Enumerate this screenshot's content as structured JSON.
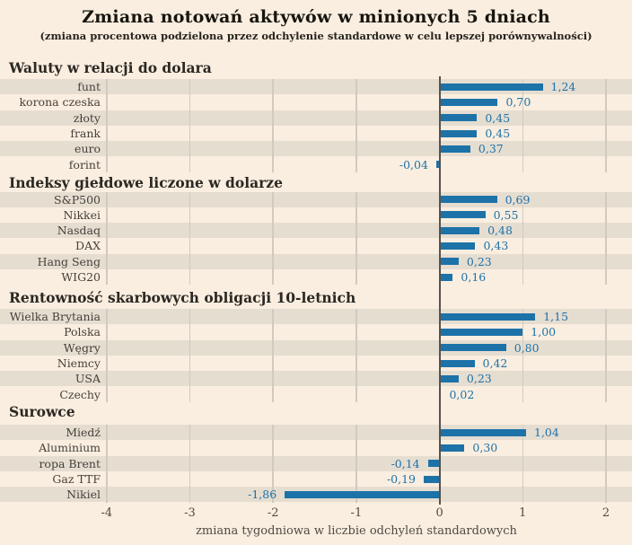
{
  "header": {
    "title": "Zmiana notowań aktywów w minionych 5 dniach",
    "subtitle": "(zmiana procentowa podzielona przez odchylenie standardowe w celu lepszej porównywalności)"
  },
  "colors": {
    "background": "#faeee0",
    "row_stripe": "#e6ddd1",
    "bar": "#1d72a8",
    "value_label": "#1d72a8",
    "grid_line": "#d0cac0",
    "zero_line": "#56534d",
    "section_title": "#2b2823",
    "row_label": "#45413a",
    "axis_text": "#4e4a44"
  },
  "chart_data": {
    "type": "bar",
    "orientation": "horizontal",
    "title": "Zmiana notowań aktywów w minionych 5 dniach",
    "subtitle": "(zmiana procentowa podzielona przez odchylenie standardowe w celu lepszej porównywalności)",
    "xlabel": "zmiana tygodniowa w liczbie odchyleń standardowych",
    "xlim": [
      -4,
      2
    ],
    "xticks": [
      "-4",
      "-3",
      "-2",
      "-1",
      "0",
      "1",
      "2"
    ],
    "grid": true,
    "decimal_separator": ",",
    "sections": [
      {
        "title": "Waluty w relacji do dolara",
        "items": [
          {
            "label": "funt",
            "value": 1.24,
            "display": "1,24"
          },
          {
            "label": "korona czeska",
            "value": 0.7,
            "display": "0,70"
          },
          {
            "label": "złoty",
            "value": 0.45,
            "display": "0,45"
          },
          {
            "label": "frank",
            "value": 0.45,
            "display": "0,45"
          },
          {
            "label": "euro",
            "value": 0.37,
            "display": "0,37"
          },
          {
            "label": "forint",
            "value": -0.04,
            "display": "-0,04"
          }
        ]
      },
      {
        "title": "Indeksy giełdowe liczone w dolarze",
        "items": [
          {
            "label": "S&P500",
            "value": 0.69,
            "display": "0,69"
          },
          {
            "label": "Nikkei",
            "value": 0.55,
            "display": "0,55"
          },
          {
            "label": "Nasdaq",
            "value": 0.48,
            "display": "0,48"
          },
          {
            "label": "DAX",
            "value": 0.43,
            "display": "0,43"
          },
          {
            "label": "Hang Seng",
            "value": 0.23,
            "display": "0,23"
          },
          {
            "label": "WIG20",
            "value": 0.16,
            "display": "0,16"
          }
        ]
      },
      {
        "title": "Rentowność skarbowych obligacji 10-letnich",
        "items": [
          {
            "label": "Wielka Brytania",
            "value": 1.15,
            "display": "1,15"
          },
          {
            "label": "Polska",
            "value": 1.0,
            "display": "1,00"
          },
          {
            "label": "Węgry",
            "value": 0.8,
            "display": "0,80"
          },
          {
            "label": "Niemcy",
            "value": 0.42,
            "display": "0,42"
          },
          {
            "label": "USA",
            "value": 0.23,
            "display": "0,23"
          },
          {
            "label": "Czechy",
            "value": 0.02,
            "display": "0,02"
          }
        ]
      },
      {
        "title": "Surowce",
        "items": [
          {
            "label": "Miedź",
            "value": 1.04,
            "display": "1,04"
          },
          {
            "label": "Aluminium",
            "value": 0.3,
            "display": "0,30"
          },
          {
            "label": "ropa Brent",
            "value": -0.14,
            "display": "-0,14"
          },
          {
            "label": "Gaz TTF",
            "value": -0.19,
            "display": "-0,19"
          },
          {
            "label": "Nikiel",
            "value": -1.86,
            "display": "-1,86"
          }
        ]
      }
    ]
  }
}
